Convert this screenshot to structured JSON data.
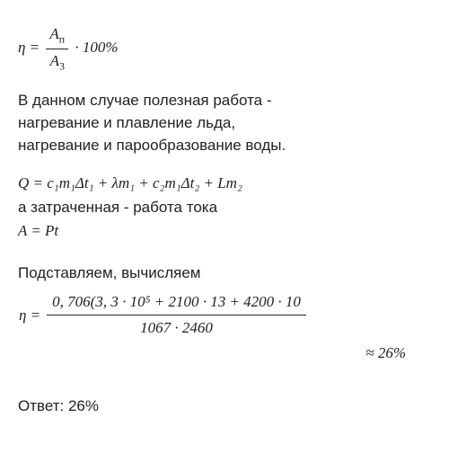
{
  "eq1": {
    "lhs": "η =",
    "frac_num": "A",
    "frac_num_sub": "п",
    "frac_den": "A",
    "frac_den_sub": "3",
    "tail": " · 100%"
  },
  "text1": {
    "l1": "В данном случае полезная работа -",
    "l2": "нагревание и плавление льда,",
    "l3": "нагревание и парообразование воды."
  },
  "eqQ": "Q = c₁m₁Δt₁ + λm₁ + c₂m₁Δt₂ + Lm₂",
  "text2": "а затраченная - работа тока",
  "eqA": "A = Pt",
  "text3": "Подставляем, вычисляем",
  "eqLong": {
    "lhs": "η =",
    "num": "0, 706(3, 3 · 10⁵ + 2100 · 13 + 4200 · 10",
    "den": "1067 · 2460",
    "approx": "≈ 26%"
  },
  "answer": "Ответ: 26%"
}
